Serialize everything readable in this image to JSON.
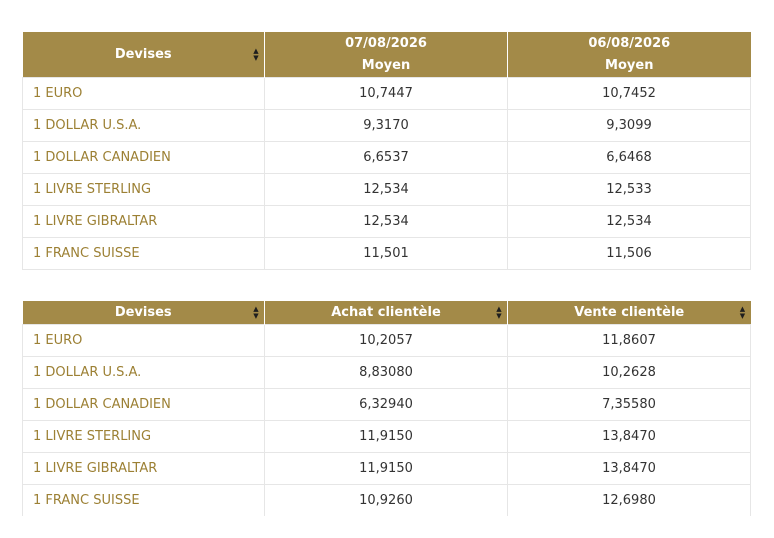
{
  "table1": {
    "headers": {
      "devises": "Devises",
      "col2_line1": "07/08/2026",
      "col2_line2": "Moyen",
      "col3_line1": "06/08/2026",
      "col3_line2": "Moyen"
    },
    "rows": [
      {
        "devise": "1 EURO",
        "v1": "10,7447",
        "v2": "10,7452"
      },
      {
        "devise": "1 DOLLAR U.S.A.",
        "v1": "9,3170",
        "v2": "9,3099"
      },
      {
        "devise": "1 DOLLAR CANADIEN",
        "v1": "6,6537",
        "v2": "6,6468"
      },
      {
        "devise": "1 LIVRE STERLING",
        "v1": "12,534",
        "v2": "12,533"
      },
      {
        "devise": "1 LIVRE GIBRALTAR",
        "v1": "12,534",
        "v2": "12,534"
      },
      {
        "devise": "1 FRANC SUISSE",
        "v1": "11,501",
        "v2": "11,506"
      }
    ]
  },
  "table2": {
    "headers": {
      "devises": "Devises",
      "achat": "Achat clientèle",
      "vente": "Vente clientèle"
    },
    "rows": [
      {
        "devise": "1 EURO",
        "v1": "10,2057",
        "v2": "11,8607"
      },
      {
        "devise": "1 DOLLAR U.S.A.",
        "v1": "8,83080",
        "v2": "10,2628"
      },
      {
        "devise": "1 DOLLAR CANADIEN",
        "v1": "6,32940",
        "v2": "7,35580"
      },
      {
        "devise": "1 LIVRE STERLING",
        "v1": "11,9150",
        "v2": "13,8470"
      },
      {
        "devise": "1 LIVRE GIBRALTAR",
        "v1": "11,9150",
        "v2": "13,8470"
      },
      {
        "devise": "1 FRANC SUISSE",
        "v1": "10,9260",
        "v2": "12,6980"
      }
    ]
  },
  "colors": {
    "header_bg": "#a38a48",
    "currency_text": "#9c8034",
    "value_text": "#333333",
    "border": "#e6e6e6"
  },
  "icons": {
    "sort": "sort-arrows-icon"
  }
}
